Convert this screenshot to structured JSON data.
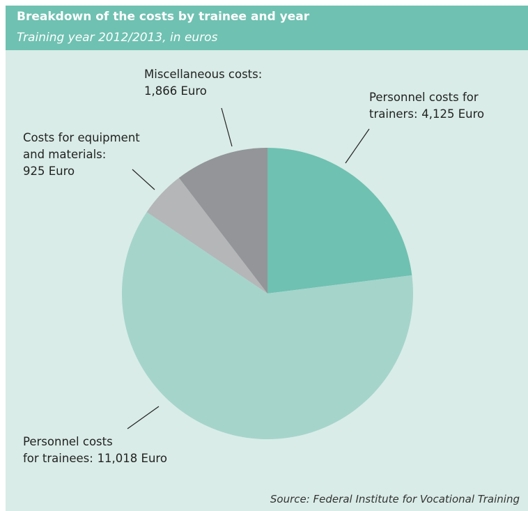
{
  "chart_data": {
    "type": "pie",
    "title": "Breakdown of the costs by trainee and year",
    "subtitle": "Training year 2012/2013, in euros",
    "source": "Source: Federal Institute for Vocational Training",
    "categories": [
      "Personnel costs for\ntrainers:",
      "Personnel costs\nfor trainees:",
      "Costs for equipment\nand materials:",
      "Miscellaneous costs:"
    ],
    "values": [
      4125,
      11018,
      925,
      1866
    ],
    "value_labels": [
      "4,125 Euro",
      "11,018 Euro",
      "925 Euro",
      "1,866 Euro"
    ],
    "colors": [
      "#6fc1b1",
      "#a5d4cb",
      "#b4b6b8",
      "#939598"
    ]
  }
}
